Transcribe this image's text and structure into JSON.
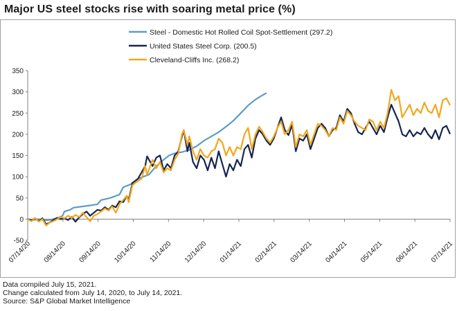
{
  "title": "Major US steel stocks rise with soaring metal price (%)",
  "notes": [
    "Data compiled July 15, 2021.",
    "Change calculated from July 14, 2020, to July 14, 2021.",
    "Source: S&P Global Market Intelligence"
  ],
  "chart_data": {
    "type": "line",
    "title": "Major US steel stocks rise with soaring metal price (%)",
    "ylim": [
      -50,
      350
    ],
    "yticks": [
      350,
      300,
      250,
      200,
      150,
      100,
      50,
      0,
      -50
    ],
    "xtick_labels": [
      "07/14/20",
      "08/14/20",
      "09/14/20",
      "10/14/20",
      "11/14/20",
      "12/14/20",
      "01/14/21",
      "02/14/21",
      "03/14/21",
      "04/14/21",
      "05/14/21",
      "06/14/21",
      "07/14/21"
    ],
    "xlabel": "",
    "ylabel": "",
    "grid": false,
    "legend_position": "top-center",
    "series": [
      {
        "name": "Steel - Domestic Hot Rolled Coil Spot-Settlement (297.2)",
        "color": "#5b9bc8",
        "points": [
          [
            0,
            0
          ],
          [
            0.3,
            -2
          ],
          [
            0.6,
            0
          ],
          [
            1,
            -3
          ],
          [
            1.3,
            -1
          ],
          [
            1.6,
            2
          ],
          [
            1.9,
            8
          ],
          [
            2,
            18
          ],
          [
            2.3,
            22
          ],
          [
            2.5,
            27
          ],
          [
            3,
            30
          ],
          [
            3.5,
            33
          ],
          [
            3.8,
            35
          ],
          [
            4,
            45
          ],
          [
            4.5,
            50
          ],
          [
            5,
            58
          ],
          [
            5.2,
            75
          ],
          [
            5.6,
            82
          ],
          [
            6,
            95
          ],
          [
            6.3,
            100
          ],
          [
            6.6,
            105
          ],
          [
            7,
            125
          ],
          [
            7.4,
            140
          ],
          [
            7.7,
            150
          ],
          [
            8,
            155
          ],
          [
            8.4,
            158
          ],
          [
            8.8,
            163
          ],
          [
            9.2,
            172
          ],
          [
            9.6,
            185
          ],
          [
            10,
            195
          ],
          [
            10.4,
            205
          ],
          [
            10.8,
            218
          ],
          [
            11.2,
            232
          ],
          [
            11.6,
            250
          ],
          [
            12,
            268
          ],
          [
            12.4,
            282
          ],
          [
            12.7,
            290
          ],
          [
            13,
            297.2
          ]
        ]
      },
      {
        "name": "United States Steel Corp. (200.5)",
        "color": "#14254f",
        "points": [
          [
            0,
            0
          ],
          [
            0.2,
            -3
          ],
          [
            0.4,
            2
          ],
          [
            0.6,
            -5
          ],
          [
            0.8,
            2
          ],
          [
            1,
            -12
          ],
          [
            1.2,
            -8
          ],
          [
            1.4,
            -2
          ],
          [
            1.6,
            3
          ],
          [
            1.8,
            0
          ],
          [
            2,
            2
          ],
          [
            2.2,
            -2
          ],
          [
            2.4,
            5
          ],
          [
            2.6,
            -6
          ],
          [
            2.8,
            4
          ],
          [
            3,
            12
          ],
          [
            3.2,
            18
          ],
          [
            3.4,
            8
          ],
          [
            3.6,
            15
          ],
          [
            3.8,
            22
          ],
          [
            4,
            20
          ],
          [
            4.2,
            28
          ],
          [
            4.4,
            22
          ],
          [
            4.6,
            32
          ],
          [
            4.8,
            28
          ],
          [
            5,
            42
          ],
          [
            5.2,
            40
          ],
          [
            5.4,
            55
          ],
          [
            5.5,
            45
          ],
          [
            5.7,
            85
          ],
          [
            6,
            95
          ],
          [
            6.2,
            110
          ],
          [
            6.4,
            125
          ],
          [
            6.5,
            148
          ],
          [
            6.8,
            125
          ],
          [
            7,
            145
          ],
          [
            7.2,
            150
          ],
          [
            7.4,
            115
          ],
          [
            7.6,
            130
          ],
          [
            7.8,
            120
          ],
          [
            8,
            150
          ],
          [
            8.2,
            160
          ],
          [
            8.4,
            195
          ],
          [
            8.5,
            210
          ],
          [
            8.7,
            160
          ],
          [
            8.8,
            180
          ],
          [
            9,
            135
          ],
          [
            9.2,
            120
          ],
          [
            9.4,
            150
          ],
          [
            9.6,
            140
          ],
          [
            9.8,
            115
          ],
          [
            10,
            145
          ],
          [
            10.2,
            120
          ],
          [
            10.4,
            160
          ],
          [
            10.6,
            130
          ],
          [
            10.8,
            100
          ],
          [
            11,
            130
          ],
          [
            11.2,
            115
          ],
          [
            11.4,
            140
          ],
          [
            11.6,
            125
          ],
          [
            11.8,
            165
          ],
          [
            12,
            175
          ],
          [
            12.2,
            145
          ],
          [
            12.4,
            190
          ],
          [
            12.6,
            210
          ],
          [
            12.8,
            200
          ],
          [
            13,
            185
          ],
          [
            13.2,
            175
          ],
          [
            13.4,
            190
          ],
          [
            13.6,
            215
          ],
          [
            13.8,
            240
          ],
          [
            14,
            210
          ],
          [
            14.2,
            198
          ],
          [
            14.4,
            222
          ],
          [
            14.6,
            160
          ],
          [
            14.8,
            190
          ],
          [
            15,
            185
          ],
          [
            15.2,
            200
          ],
          [
            15.4,
            165
          ],
          [
            15.6,
            190
          ],
          [
            15.8,
            215
          ],
          [
            16,
            225
          ],
          [
            16.2,
            215
          ],
          [
            16.4,
            195
          ],
          [
            16.6,
            210
          ],
          [
            16.8,
            215
          ],
          [
            17,
            245
          ],
          [
            17.2,
            230
          ],
          [
            17.4,
            260
          ],
          [
            17.6,
            250
          ],
          [
            17.8,
            225
          ],
          [
            18,
            205
          ],
          [
            18.2,
            200
          ],
          [
            18.4,
            215
          ],
          [
            18.6,
            230
          ],
          [
            18.8,
            215
          ],
          [
            19,
            200
          ],
          [
            19.2,
            220
          ],
          [
            19.4,
            205
          ],
          [
            19.6,
            240
          ],
          [
            19.8,
            270
          ],
          [
            20,
            250
          ],
          [
            20.2,
            230
          ],
          [
            20.4,
            200
          ],
          [
            20.6,
            195
          ],
          [
            20.8,
            210
          ],
          [
            21,
            195
          ],
          [
            21.2,
            205
          ],
          [
            21.4,
            200
          ],
          [
            21.6,
            215
          ],
          [
            21.8,
            200
          ],
          [
            22,
            190
          ],
          [
            22.2,
            210
          ],
          [
            22.4,
            188
          ],
          [
            22.6,
            215
          ],
          [
            22.8,
            220
          ],
          [
            23,
            200.5
          ]
        ]
      },
      {
        "name": "Cleveland-Cliffs Inc. (268.2)",
        "color": "#f2a71b",
        "points": [
          [
            0,
            0
          ],
          [
            0.2,
            -5
          ],
          [
            0.4,
            3
          ],
          [
            0.6,
            -6
          ],
          [
            0.8,
            0
          ],
          [
            1,
            -15
          ],
          [
            1.2,
            -8
          ],
          [
            1.4,
            -5
          ],
          [
            1.6,
            0
          ],
          [
            1.8,
            5
          ],
          [
            2,
            2
          ],
          [
            2.2,
            8
          ],
          [
            2.4,
            3
          ],
          [
            2.6,
            10
          ],
          [
            2.8,
            5
          ],
          [
            3,
            15
          ],
          [
            3.2,
            5
          ],
          [
            3.4,
            -5
          ],
          [
            3.6,
            8
          ],
          [
            3.8,
            12
          ],
          [
            4,
            18
          ],
          [
            4.2,
            25
          ],
          [
            4.4,
            20
          ],
          [
            4.6,
            30
          ],
          [
            4.8,
            15
          ],
          [
            5,
            35
          ],
          [
            5.2,
            45
          ],
          [
            5.4,
            55
          ],
          [
            5.5,
            40
          ],
          [
            5.7,
            80
          ],
          [
            6,
            90
          ],
          [
            6.2,
            95
          ],
          [
            6.4,
            125
          ],
          [
            6.5,
            105
          ],
          [
            6.8,
            140
          ],
          [
            7,
            120
          ],
          [
            7.2,
            135
          ],
          [
            7.4,
            110
          ],
          [
            7.6,
            120
          ],
          [
            7.8,
            115
          ],
          [
            8,
            140
          ],
          [
            8.2,
            155
          ],
          [
            8.4,
            200
          ],
          [
            8.5,
            210
          ],
          [
            8.7,
            175
          ],
          [
            8.8,
            195
          ],
          [
            9,
            160
          ],
          [
            9.2,
            140
          ],
          [
            9.4,
            165
          ],
          [
            9.6,
            150
          ],
          [
            9.8,
            145
          ],
          [
            10,
            160
          ],
          [
            10.2,
            165
          ],
          [
            10.4,
            190
          ],
          [
            10.6,
            180
          ],
          [
            10.8,
            150
          ],
          [
            11,
            170
          ],
          [
            11.2,
            150
          ],
          [
            11.4,
            170
          ],
          [
            11.6,
            165
          ],
          [
            11.8,
            200
          ],
          [
            12,
            215
          ],
          [
            12.2,
            165
          ],
          [
            12.4,
            200
          ],
          [
            12.6,
            218
          ],
          [
            12.8,
            205
          ],
          [
            13,
            190
          ],
          [
            13.2,
            180
          ],
          [
            13.4,
            195
          ],
          [
            13.6,
            215
          ],
          [
            13.8,
            230
          ],
          [
            14,
            200
          ],
          [
            14.2,
            210
          ],
          [
            14.4,
            230
          ],
          [
            14.6,
            170
          ],
          [
            14.8,
            200
          ],
          [
            15,
            195
          ],
          [
            15.2,
            210
          ],
          [
            15.4,
            175
          ],
          [
            15.6,
            200
          ],
          [
            15.8,
            225
          ],
          [
            16,
            220
          ],
          [
            16.2,
            210
          ],
          [
            16.4,
            195
          ],
          [
            16.6,
            215
          ],
          [
            16.8,
            210
          ],
          [
            17,
            240
          ],
          [
            17.2,
            225
          ],
          [
            17.4,
            255
          ],
          [
            17.6,
            245
          ],
          [
            17.8,
            230
          ],
          [
            18,
            220
          ],
          [
            18.2,
            215
          ],
          [
            18.4,
            210
          ],
          [
            18.6,
            235
          ],
          [
            18.8,
            230
          ],
          [
            19,
            210
          ],
          [
            19.2,
            230
          ],
          [
            19.4,
            215
          ],
          [
            19.6,
            250
          ],
          [
            19.8,
            305
          ],
          [
            20,
            280
          ],
          [
            20.2,
            290
          ],
          [
            20.4,
            240
          ],
          [
            20.6,
            255
          ],
          [
            20.8,
            270
          ],
          [
            21,
            245
          ],
          [
            21.2,
            260
          ],
          [
            21.4,
            250
          ],
          [
            21.6,
            275
          ],
          [
            21.8,
            255
          ],
          [
            22,
            250
          ],
          [
            22.2,
            270
          ],
          [
            22.4,
            240
          ],
          [
            22.6,
            280
          ],
          [
            22.8,
            285
          ],
          [
            23,
            268.2
          ]
        ]
      }
    ]
  }
}
